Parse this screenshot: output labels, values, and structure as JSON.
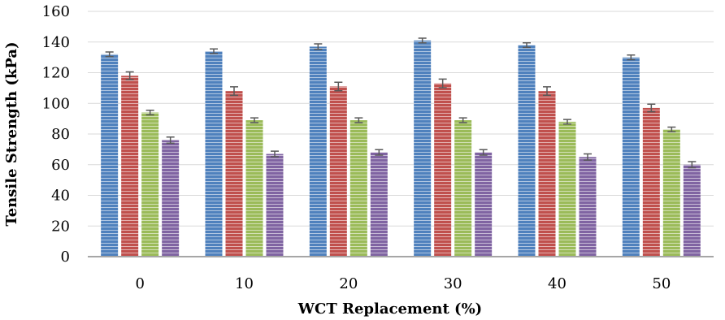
{
  "chart_data": {
    "type": "bar",
    "title": "",
    "xlabel": "WCT Replacement (%)",
    "ylabel": "Tensile Strength (kPa)",
    "categories": [
      "0",
      "10",
      "20",
      "30",
      "40",
      "50"
    ],
    "ylim": [
      0,
      160
    ],
    "yticks": [
      0,
      20,
      40,
      60,
      80,
      100,
      120,
      140,
      160
    ],
    "grid": true,
    "legend": "none",
    "series": [
      {
        "color": "#4f81bd",
        "values": [
          132,
          134,
          137,
          141,
          138,
          130
        ],
        "errors": [
          1.5,
          1.5,
          1.8,
          1.5,
          1.5,
          1.5
        ]
      },
      {
        "color": "#c0504d",
        "values": [
          118,
          108,
          111,
          113,
          108,
          97
        ],
        "errors": [
          2.5,
          2.8,
          2.8,
          2.8,
          2.8,
          2.5
        ]
      },
      {
        "color": "#9bbb59",
        "values": [
          94,
          89,
          89,
          89,
          88,
          83
        ],
        "errors": [
          1.5,
          1.5,
          1.5,
          1.5,
          1.5,
          1.5
        ]
      },
      {
        "color": "#8064a2",
        "values": [
          76,
          67,
          68,
          68,
          65,
          60
        ],
        "errors": [
          2,
          1.8,
          1.8,
          1.8,
          2,
          2
        ]
      }
    ]
  }
}
